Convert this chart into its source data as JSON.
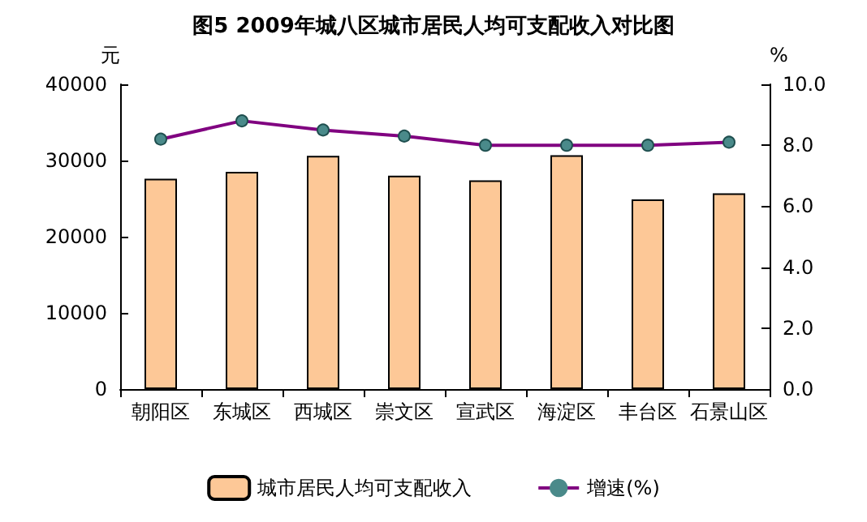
{
  "chart_data": {
    "type": "bar",
    "title": "图5 2009年城八区城市居民人均可支配收入对比图",
    "categories": [
      "朝阳区",
      "东城区",
      "西城区",
      "崇文区",
      "宣武区",
      "海淀区",
      "丰台区",
      "石景山区"
    ],
    "ylabel": "元",
    "y2label": "%",
    "series": [
      {
        "name": "城市居民人均可支配收入",
        "color": "#fdc897",
        "values": [
          27600,
          28500,
          30600,
          28000,
          27400,
          30700,
          24900,
          25700
        ]
      },
      {
        "name": "增速(%)",
        "type": "line",
        "axis": "y2",
        "color": "#800080",
        "marker": "circle",
        "values": [
          8.2,
          8.8,
          8.5,
          8.3,
          8.0,
          8.0,
          8.0,
          8.1
        ]
      }
    ],
    "ylim": [
      0,
      40000
    ],
    "yticks": [
      0,
      10000,
      20000,
      30000,
      40000
    ],
    "y2lim": [
      0,
      10
    ],
    "y2ticks": [
      {
        "value": 0,
        "label": "0.0"
      },
      {
        "value": 2,
        "label": "2.0"
      },
      {
        "value": 4,
        "label": "4.0"
      },
      {
        "value": 6,
        "label": "6.0"
      },
      {
        "value": 8,
        "label": "8.0"
      },
      {
        "value": 10,
        "label": "10.0"
      }
    ],
    "legend": "bottom",
    "grid": false
  }
}
